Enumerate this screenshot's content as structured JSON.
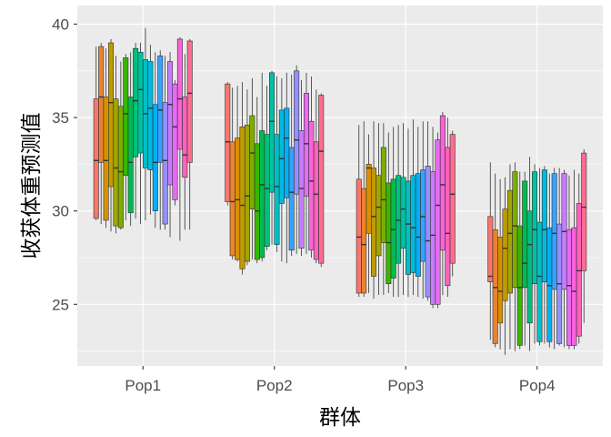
{
  "chart_data": {
    "type": "boxplot",
    "xlabel": "群体",
    "ylabel": "收获体重预测值",
    "categories": [
      "Pop1",
      "Pop2",
      "Pop3",
      "Pop4"
    ],
    "ylim": [
      21.7,
      41.0
    ],
    "yticks": [
      25,
      30,
      35,
      40
    ],
    "grid": true,
    "legend": "none",
    "boxes_per_group": 20,
    "series": [
      {
        "group": "Pop1",
        "boxes": [
          {
            "min": 29.5,
            "q1": 29.6,
            "median": 32.7,
            "q3": 36.0,
            "max": 38.8
          },
          {
            "min": 29.3,
            "q1": 32.6,
            "median": 36.1,
            "q3": 38.8,
            "max": 39.0
          },
          {
            "min": 29.1,
            "q1": 29.5,
            "median": 32.7,
            "q3": 36.1,
            "max": 38.7
          },
          {
            "min": 28.9,
            "q1": 31.3,
            "median": 35.8,
            "q3": 39.0,
            "max": 39.2
          },
          {
            "min": 28.8,
            "q1": 29.2,
            "median": 32.3,
            "q3": 36.0,
            "max": 38.3
          },
          {
            "min": 29.0,
            "q1": 29.1,
            "median": 32.1,
            "q3": 35.6,
            "max": 38.0
          },
          {
            "min": 29.5,
            "q1": 31.9,
            "median": 35.2,
            "q3": 38.2,
            "max": 38.4
          },
          {
            "min": 29.2,
            "q1": 29.9,
            "median": 32.6,
            "q3": 36.1,
            "max": 38.5
          },
          {
            "min": 29.6,
            "q1": 32.9,
            "median": 35.9,
            "q3": 38.7,
            "max": 39.0
          },
          {
            "min": 29.3,
            "q1": 33.1,
            "median": 36.5,
            "q3": 38.5,
            "max": 39.0
          },
          {
            "min": 29.5,
            "q1": 32.3,
            "median": 35.2,
            "q3": 38.1,
            "max": 39.8
          },
          {
            "min": 29.8,
            "q1": 32.2,
            "median": 35.5,
            "q3": 38.0,
            "max": 38.9
          },
          {
            "min": 29.1,
            "q1": 30.0,
            "median": 32.6,
            "q3": 35.7,
            "max": 38.5
          },
          {
            "min": 29.0,
            "q1": 32.6,
            "median": 35.4,
            "q3": 38.3,
            "max": 38.6
          },
          {
            "min": 29.0,
            "q1": 29.3,
            "median": 32.7,
            "q3": 35.8,
            "max": 38.3
          },
          {
            "min": 28.6,
            "q1": 31.4,
            "median": 35.7,
            "q3": 38.0,
            "max": 38.5
          },
          {
            "min": 30.3,
            "q1": 30.6,
            "median": 34.5,
            "q3": 36.8,
            "max": 37.0
          },
          {
            "min": 28.4,
            "q1": 33.3,
            "median": 36.0,
            "q3": 39.2,
            "max": 39.3
          },
          {
            "min": 29.0,
            "q1": 31.8,
            "median": 33.0,
            "q3": 36.1,
            "max": 38.4
          },
          {
            "min": 29.0,
            "q1": 32.6,
            "median": 36.3,
            "q3": 39.1,
            "max": 39.2
          }
        ]
      },
      {
        "group": "Pop2",
        "boxes": [
          {
            "min": 30.3,
            "q1": 30.5,
            "median": 33.7,
            "q3": 36.8,
            "max": 36.9
          },
          {
            "min": 27.4,
            "q1": 27.6,
            "median": 30.5,
            "q3": 33.7,
            "max": 36.6
          },
          {
            "min": 27.3,
            "q1": 27.4,
            "median": 30.6,
            "q3": 33.9,
            "max": 36.7
          },
          {
            "min": 26.6,
            "q1": 26.9,
            "median": 30.3,
            "q3": 34.5,
            "max": 36.9
          },
          {
            "min": 27.1,
            "q1": 27.3,
            "median": 30.8,
            "q3": 34.6,
            "max": 36.5
          },
          {
            "min": 27.4,
            "q1": 30.1,
            "median": 33.1,
            "q3": 35.1,
            "max": 37.1
          },
          {
            "min": 27.2,
            "q1": 27.4,
            "median": 30.0,
            "q3": 33.6,
            "max": 36.1
          },
          {
            "min": 27.3,
            "q1": 27.5,
            "median": 31.4,
            "q3": 34.3,
            "max": 37.4
          },
          {
            "min": 27.9,
            "q1": 28.1,
            "median": 31.2,
            "q3": 34.1,
            "max": 36.7
          },
          {
            "min": 28.2,
            "q1": 31.0,
            "median": 34.8,
            "q3": 37.4,
            "max": 37.5
          },
          {
            "min": 27.8,
            "q1": 28.2,
            "median": 31.3,
            "q3": 34.1,
            "max": 37.2
          },
          {
            "min": 27.3,
            "q1": 30.4,
            "median": 32.8,
            "q3": 35.4,
            "max": 37.1
          },
          {
            "min": 27.2,
            "q1": 30.7,
            "median": 33.9,
            "q3": 35.5,
            "max": 37.4
          },
          {
            "min": 27.6,
            "q1": 27.9,
            "median": 31.0,
            "q3": 33.4,
            "max": 37.3
          },
          {
            "min": 27.7,
            "q1": 30.9,
            "median": 33.8,
            "q3": 37.5,
            "max": 37.8
          },
          {
            "min": 27.6,
            "q1": 28.0,
            "median": 31.2,
            "q3": 34.3,
            "max": 37.0
          },
          {
            "min": 27.7,
            "q1": 30.8,
            "median": 33.6,
            "q3": 36.3,
            "max": 37.4
          },
          {
            "min": 27.5,
            "q1": 27.9,
            "median": 31.6,
            "q3": 34.8,
            "max": 37.2
          },
          {
            "min": 27.2,
            "q1": 27.4,
            "median": 30.9,
            "q3": 33.7,
            "max": 36.5
          },
          {
            "min": 27.0,
            "q1": 27.2,
            "median": 33.2,
            "q3": 36.2,
            "max": 36.3
          }
        ]
      },
      {
        "group": "Pop3",
        "boxes": [
          {
            "min": 25.4,
            "q1": 25.6,
            "median": 28.6,
            "q3": 31.7,
            "max": 34.6
          },
          {
            "min": 25.4,
            "q1": 25.6,
            "median": 28.2,
            "q3": 31.2,
            "max": 34.8
          },
          {
            "min": 25.6,
            "q1": 28.8,
            "median": 32.3,
            "q3": 32.5,
            "max": 34.1
          },
          {
            "min": 25.3,
            "q1": 26.5,
            "median": 29.7,
            "q3": 32.3,
            "max": 34.8
          },
          {
            "min": 25.5,
            "q1": 27.6,
            "median": 30.2,
            "q3": 31.9,
            "max": 34.7
          },
          {
            "min": 25.5,
            "q1": 28.3,
            "median": 30.6,
            "q3": 33.4,
            "max": 34.7
          },
          {
            "min": 25.6,
            "q1": 26.1,
            "median": 28.3,
            "q3": 31.5,
            "max": 34.2
          },
          {
            "min": 25.4,
            "q1": 26.4,
            "median": 29.0,
            "q3": 31.7,
            "max": 34.5
          },
          {
            "min": 25.4,
            "q1": 27.2,
            "median": 29.5,
            "q3": 31.9,
            "max": 34.6
          },
          {
            "min": 25.5,
            "q1": 28.0,
            "median": 30.1,
            "q3": 31.8,
            "max": 34.7
          },
          {
            "min": 25.4,
            "q1": 26.6,
            "median": 29.3,
            "q3": 31.6,
            "max": 34.4
          },
          {
            "min": 25.5,
            "q1": 26.7,
            "median": 29.1,
            "q3": 31.9,
            "max": 34.9
          },
          {
            "min": 25.4,
            "q1": 26.5,
            "median": 28.6,
            "q3": 32.0,
            "max": 34.5
          },
          {
            "min": 25.3,
            "q1": 27.3,
            "median": 29.7,
            "q3": 32.2,
            "max": 34.8
          },
          {
            "min": 25.2,
            "q1": 25.4,
            "median": 28.4,
            "q3": 32.4,
            "max": 34.8
          },
          {
            "min": 24.8,
            "q1": 25.0,
            "median": 28.7,
            "q3": 32.1,
            "max": 34.5
          },
          {
            "min": 24.8,
            "q1": 25.0,
            "median": 30.3,
            "q3": 33.8,
            "max": 34.2
          },
          {
            "min": 25.5,
            "q1": 27.9,
            "median": 31.4,
            "q3": 35.1,
            "max": 35.3
          },
          {
            "min": 25.4,
            "q1": 26.0,
            "median": 28.8,
            "q3": 33.4,
            "max": 35.0
          },
          {
            "min": 26.5,
            "q1": 27.2,
            "median": 30.9,
            "q3": 34.1,
            "max": 34.3
          }
        ]
      },
      {
        "group": "Pop4",
        "boxes": [
          {
            "min": 23.1,
            "q1": 26.2,
            "median": 26.5,
            "q3": 29.7,
            "max": 32.6
          },
          {
            "min": 22.7,
            "q1": 22.9,
            "median": 25.9,
            "q3": 29.0,
            "max": 32.0
          },
          {
            "min": 22.6,
            "q1": 24.0,
            "median": 25.7,
            "q3": 28.6,
            "max": 31.7
          },
          {
            "min": 22.3,
            "q1": 25.2,
            "median": 28.0,
            "q3": 30.1,
            "max": 31.8
          },
          {
            "min": 22.6,
            "q1": 25.6,
            "median": 28.8,
            "q3": 31.1,
            "max": 32.5
          },
          {
            "min": 22.5,
            "q1": 25.9,
            "median": 29.2,
            "q3": 32.1,
            "max": 32.6
          },
          {
            "min": 22.6,
            "q1": 22.8,
            "median": 25.9,
            "q3": 29.2,
            "max": 32.1
          },
          {
            "min": 22.8,
            "q1": 25.9,
            "median": 27.2,
            "q3": 31.6,
            "max": 32.1
          },
          {
            "min": 22.5,
            "q1": 24.0,
            "median": 28.2,
            "q3": 30.0,
            "max": 32.9
          },
          {
            "min": 22.9,
            "q1": 26.1,
            "median": 29.0,
            "q3": 32.1,
            "max": 32.5
          },
          {
            "min": 22.8,
            "q1": 23.0,
            "median": 26.5,
            "q3": 29.4,
            "max": 32.3
          },
          {
            "min": 22.9,
            "q1": 26.2,
            "median": 29.0,
            "q3": 32.2,
            "max": 32.4
          },
          {
            "min": 22.7,
            "q1": 23.0,
            "median": 26.0,
            "q3": 29.1,
            "max": 32.0
          },
          {
            "min": 22.6,
            "q1": 25.8,
            "median": 28.8,
            "q3": 32.0,
            "max": 32.3
          },
          {
            "min": 22.8,
            "q1": 22.9,
            "median": 26.1,
            "q3": 29.3,
            "max": 32.3
          },
          {
            "min": 22.7,
            "q1": 25.8,
            "median": 28.9,
            "q3": 32.0,
            "max": 32.2
          },
          {
            "min": 22.6,
            "q1": 22.8,
            "median": 26.0,
            "q3": 29.0,
            "max": 31.9
          },
          {
            "min": 22.6,
            "q1": 22.8,
            "median": 25.7,
            "q3": 29.1,
            "max": 32.2
          },
          {
            "min": 22.9,
            "q1": 23.3,
            "median": 26.8,
            "q3": 30.4,
            "max": 32.0
          },
          {
            "min": 24.0,
            "q1": 26.8,
            "median": 30.2,
            "q3": 33.1,
            "max": 33.3
          }
        ]
      }
    ],
    "colors": {
      "panel_background": "#ebebeb",
      "grid_major": "#ffffff",
      "tick_label": "#4d4d4d",
      "box_palette": [
        "#F8766D",
        "#EA8331",
        "#D89000",
        "#C09B00",
        "#A3A500",
        "#7CAE00",
        "#39B600",
        "#00BB4E",
        "#00BF7D",
        "#00C1A3",
        "#00BFC4",
        "#00BAE0",
        "#00B0F6",
        "#35A2FF",
        "#9590FF",
        "#C77CFF",
        "#E76BF3",
        "#FA62DB",
        "#FF62BC",
        "#FF6C91"
      ]
    }
  }
}
